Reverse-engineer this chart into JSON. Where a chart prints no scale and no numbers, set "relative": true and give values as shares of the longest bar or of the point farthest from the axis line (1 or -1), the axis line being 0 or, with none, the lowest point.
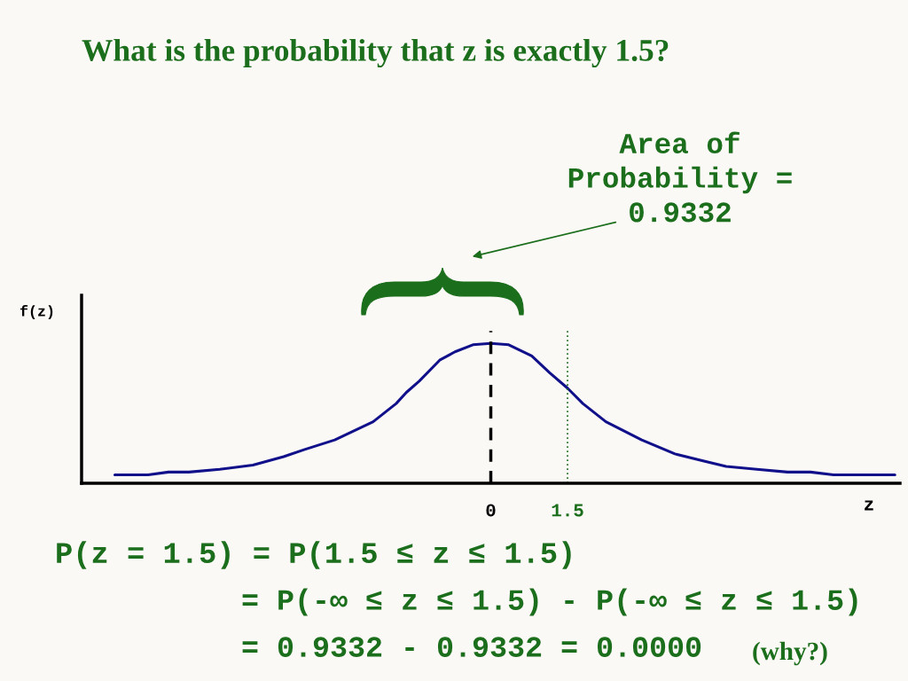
{
  "chart_data": {
    "type": "line",
    "title": "What is the probability that z is exactly 1.5?",
    "xlabel": "z",
    "ylabel": "f(z)",
    "relative": true,
    "x": [
      -7.35,
      -6.7,
      -6.3,
      -5.9,
      -5.3,
      -4.65,
      -4.05,
      -3.65,
      -3.05,
      -2.3,
      -1.85,
      -1.65,
      -1.4,
      -1.0,
      -0.7,
      -0.35,
      0,
      0.35,
      0.8,
      1.15,
      1.5,
      1.8,
      2.25,
      2.95,
      3.6,
      4.15,
      4.6,
      5.2,
      5.8,
      6.25,
      6.7,
      7.15,
      7.9
    ],
    "series": [
      {
        "color": "#10108a",
        "values": [
          0.06,
          0.06,
          0.08,
          0.08,
          0.1,
          0.13,
          0.19,
          0.24,
          0.31,
          0.44,
          0.57,
          0.65,
          0.73,
          0.88,
          0.94,
          0.99,
          1,
          0.99,
          0.91,
          0.79,
          0.68,
          0.57,
          0.44,
          0.31,
          0.21,
          0.16,
          0.12,
          0.1,
          0.08,
          0.08,
          0.06,
          0.06,
          0.06
        ]
      }
    ],
    "xlim": [
      -8,
      8
    ],
    "xticks": [
      0,
      1.5
    ],
    "line_style": "solid",
    "ref_lines": [
      {
        "axis": "x",
        "value": 0,
        "line_style": "dashed",
        "color": "#000000"
      },
      {
        "axis": "x",
        "value": 1.5,
        "line_style": "dotted",
        "color": "#1b6e1b"
      }
    ],
    "annotations": [
      "Area of\nProbability =\n0.9332",
      "P(z = 1.5) = P(1.5 ≤ z ≤ 1.5)",
      "= P(-∞ ≤ z ≤ 1.5) - P(-∞ ≤ z ≤ 1.5)",
      "= 0.9332 - 0.9332 = 0.0000",
      "(why?)"
    ]
  }
}
